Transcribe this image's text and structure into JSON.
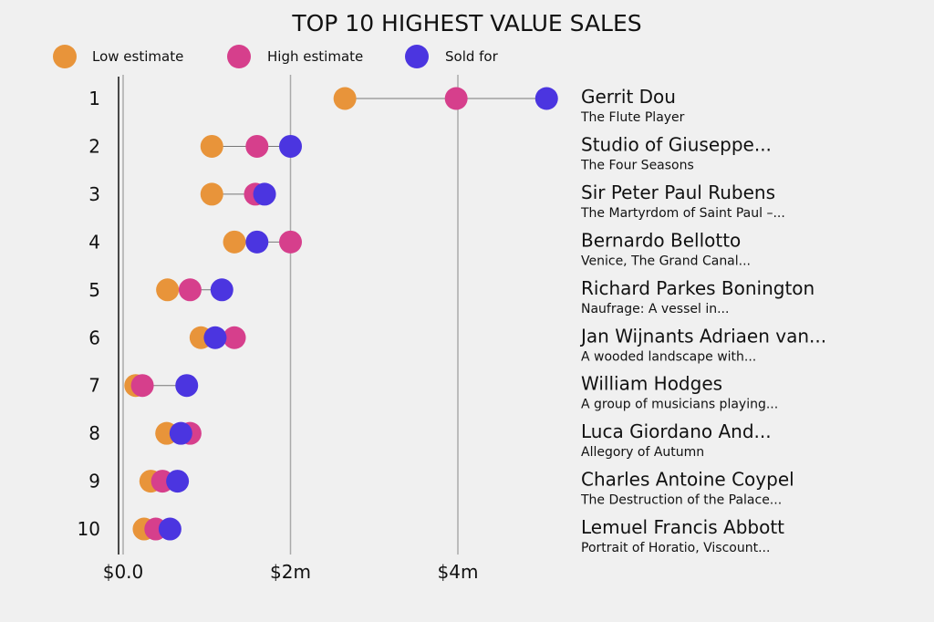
{
  "chart_data": {
    "type": "scatter",
    "subtype": "dumbbell",
    "title": "TOP 10 HIGHEST VALUE SALES",
    "legend": [
      {
        "name": "Low estimate",
        "color": "#E8943A"
      },
      {
        "name": "High estimate",
        "color": "#D63F8C"
      },
      {
        "name": "Sold for",
        "color": "#4B35E0"
      }
    ],
    "legend_position": "top-left",
    "xlim": [
      0,
      5.2
    ],
    "x_ticks": [
      {
        "value": 0,
        "label": "$0.0"
      },
      {
        "value": 2,
        "label": "$2m"
      },
      {
        "value": 4,
        "label": "$4m"
      }
    ],
    "grid": true,
    "rows": [
      {
        "rank": "1",
        "artist": "Gerrit Dou",
        "work": "The Flute Player",
        "low": 2.65,
        "high": 3.98,
        "sold": 5.06
      },
      {
        "rank": "2",
        "artist": "Studio of Giuseppe...",
        "work": "The Four Seasons",
        "low": 1.06,
        "high": 1.6,
        "sold": 2.0
      },
      {
        "rank": "3",
        "artist": "Sir Peter Paul Rubens",
        "work": "The Martyrdom of Saint Paul –...",
        "low": 1.06,
        "high": 1.58,
        "sold": 1.69
      },
      {
        "rank": "4",
        "artist": "Bernardo Bellotto",
        "work": "Venice, The Grand Canal...",
        "low": 1.33,
        "high": 2.0,
        "sold": 1.6
      },
      {
        "rank": "5",
        "artist": "Richard Parkes Bonington",
        "work": "Naufrage: A vessel in...",
        "low": 0.53,
        "high": 0.8,
        "sold": 1.18
      },
      {
        "rank": "6",
        "artist": "Jan Wijnants Adriaen van...",
        "work": "A wooded landscape with...",
        "low": 0.93,
        "high": 1.33,
        "sold": 1.1
      },
      {
        "rank": "7",
        "artist": "William Hodges",
        "work": "A group of musicians playing...",
        "low": 0.15,
        "high": 0.23,
        "sold": 0.76
      },
      {
        "rank": "8",
        "artist": "Luca Giordano And...",
        "work": "Allegory of Autumn",
        "low": 0.52,
        "high": 0.8,
        "sold": 0.69
      },
      {
        "rank": "9",
        "artist": "Charles Antoine Coypel",
        "work": "The Destruction of the Palace...",
        "low": 0.33,
        "high": 0.47,
        "sold": 0.65
      },
      {
        "rank": "10",
        "artist": "Lemuel Francis Abbott",
        "work": "Portrait of Horatio, Viscount...",
        "low": 0.25,
        "high": 0.39,
        "sold": 0.56
      }
    ]
  }
}
